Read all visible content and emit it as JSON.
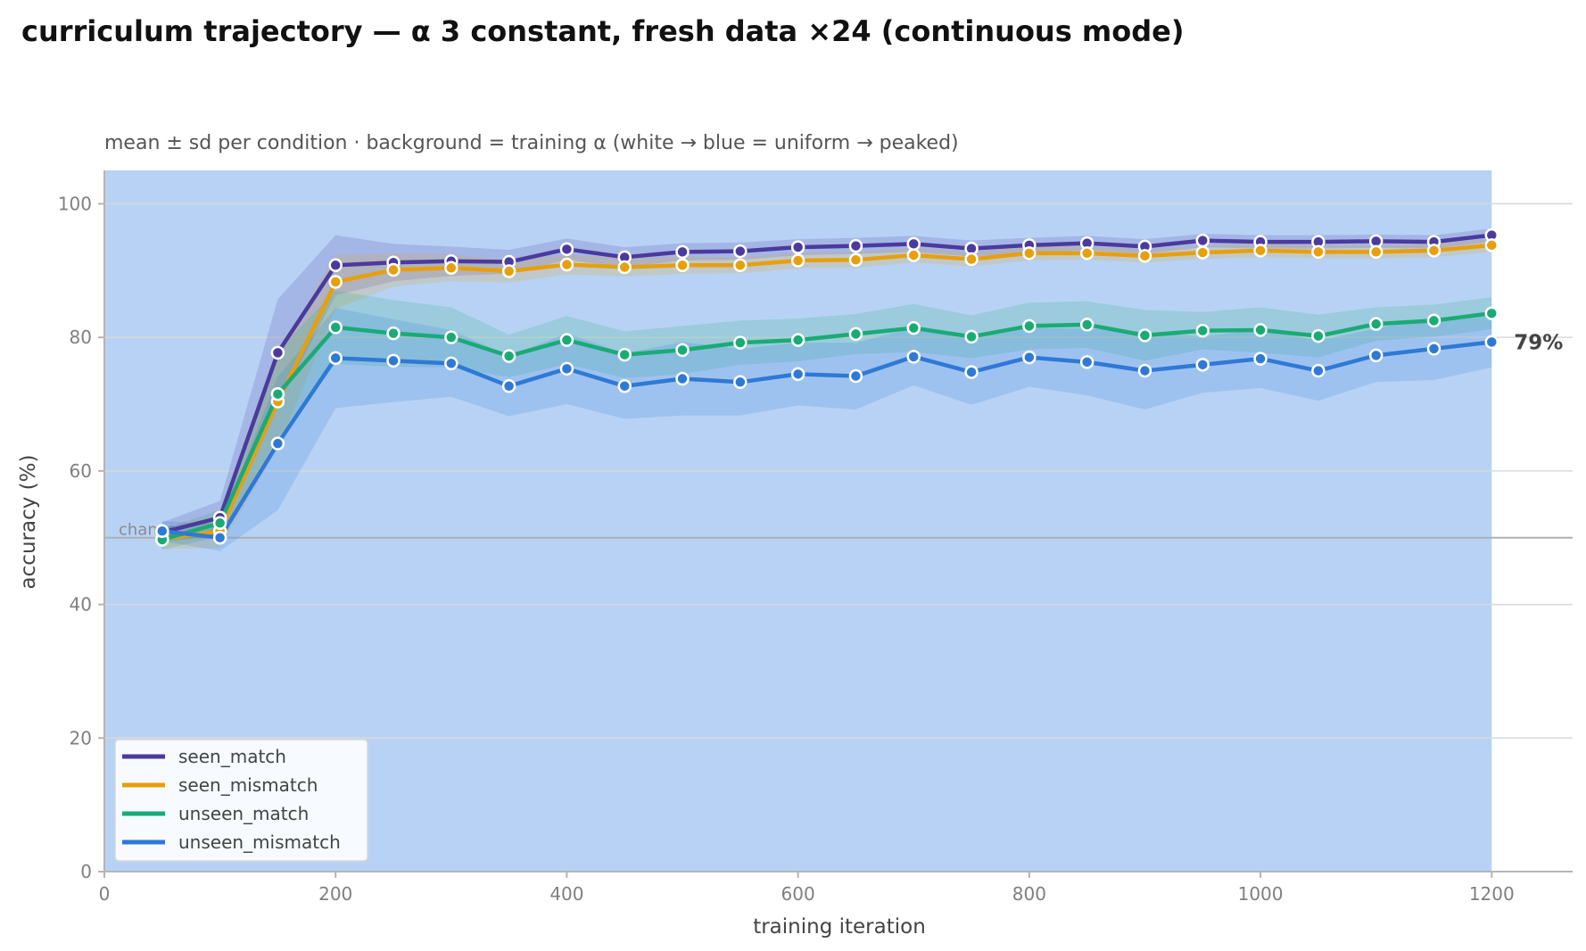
{
  "chart_data": {
    "type": "line",
    "title": "curriculum trajectory — α 3 constant, fresh data ×24 (continuous mode)",
    "subtitle": "mean ± sd per condition · background = training α (white → blue = uniform → peaked)",
    "xlabel": "training iteration",
    "ylabel": "accuracy (%)",
    "xlim": [
      0,
      1270
    ],
    "ylim": [
      0,
      105
    ],
    "xticks": [
      0,
      200,
      400,
      600,
      800,
      1000,
      1200
    ],
    "yticks": [
      0,
      20,
      40,
      60,
      80,
      100
    ],
    "grid": "horizontal",
    "legend_position": "lower-left",
    "background": {
      "color": "#b8d2f5",
      "x_from": 0,
      "x_to": 1200
    },
    "chance": {
      "label": "chance",
      "value": 50
    },
    "end_label": {
      "text": "79%",
      "series": "unseen_mismatch"
    },
    "x": [
      50,
      100,
      150,
      200,
      250,
      300,
      350,
      400,
      450,
      500,
      550,
      600,
      650,
      700,
      750,
      800,
      850,
      900,
      950,
      1000,
      1050,
      1100,
      1150,
      1200
    ],
    "series": [
      {
        "name": "seen_match",
        "color": "#4b3a9e",
        "values": [
          50.8,
          53.0,
          77.7,
          90.8,
          91.2,
          91.4,
          91.3,
          93.2,
          92.0,
          92.8,
          92.9,
          93.5,
          93.7,
          94.0,
          93.3,
          93.8,
          94.1,
          93.6,
          94.5,
          94.3,
          94.3,
          94.4,
          94.3,
          95.3
        ],
        "sd": [
          1.5,
          2.5,
          8.0,
          4.5,
          2.8,
          2.2,
          1.8,
          1.6,
          1.5,
          1.3,
          1.3,
          1.2,
          1.2,
          1.2,
          1.2,
          1.1,
          1.1,
          1.1,
          1.0,
          1.0,
          1.0,
          1.0,
          1.0,
          1.0
        ]
      },
      {
        "name": "seen_mismatch",
        "color": "#e89f0c",
        "values": [
          49.8,
          51.0,
          70.4,
          88.3,
          90.1,
          90.4,
          89.9,
          90.9,
          90.5,
          90.8,
          90.8,
          91.5,
          91.6,
          92.3,
          91.7,
          92.6,
          92.6,
          92.2,
          92.7,
          93.0,
          92.8,
          92.8,
          93.0,
          93.8
        ],
        "sd": [
          1.5,
          2.5,
          7.0,
          4.0,
          2.5,
          2.0,
          1.7,
          1.5,
          1.4,
          1.3,
          1.2,
          1.2,
          1.2,
          1.1,
          1.1,
          1.1,
          1.0,
          1.0,
          1.0,
          1.0,
          1.0,
          1.0,
          1.0,
          1.0
        ]
      },
      {
        "name": "unseen_match",
        "color": "#1aab75",
        "values": [
          49.7,
          52.2,
          71.5,
          81.5,
          80.6,
          80.0,
          77.2,
          79.6,
          77.4,
          78.1,
          79.2,
          79.6,
          80.5,
          81.4,
          80.1,
          81.7,
          81.9,
          80.3,
          81.0,
          81.1,
          80.2,
          82.0,
          82.5,
          83.6
        ],
        "sd": [
          1.5,
          2.0,
          6.5,
          5.5,
          5.0,
          4.5,
          3.2,
          3.6,
          3.5,
          3.6,
          3.3,
          3.2,
          3.0,
          3.6,
          3.2,
          3.5,
          3.5,
          3.8,
          2.8,
          3.4,
          3.2,
          2.5,
          2.4,
          2.4
        ]
      },
      {
        "name": "unseen_mismatch",
        "color": "#2f79d6",
        "values": [
          51.0,
          50.0,
          64.1,
          76.9,
          76.5,
          76.1,
          72.7,
          75.3,
          72.7,
          73.8,
          73.3,
          74.5,
          74.2,
          77.1,
          74.8,
          77.0,
          76.3,
          75.0,
          75.9,
          76.8,
          75.0,
          77.3,
          78.3,
          79.3
        ],
        "sd": [
          1.5,
          2.0,
          10.0,
          7.5,
          6.2,
          5.0,
          4.5,
          5.3,
          4.9,
          5.5,
          5.0,
          4.7,
          5.0,
          4.3,
          4.9,
          4.4,
          5.0,
          5.8,
          4.2,
          4.4,
          4.5,
          4.0,
          4.7,
          3.8
        ]
      }
    ]
  }
}
